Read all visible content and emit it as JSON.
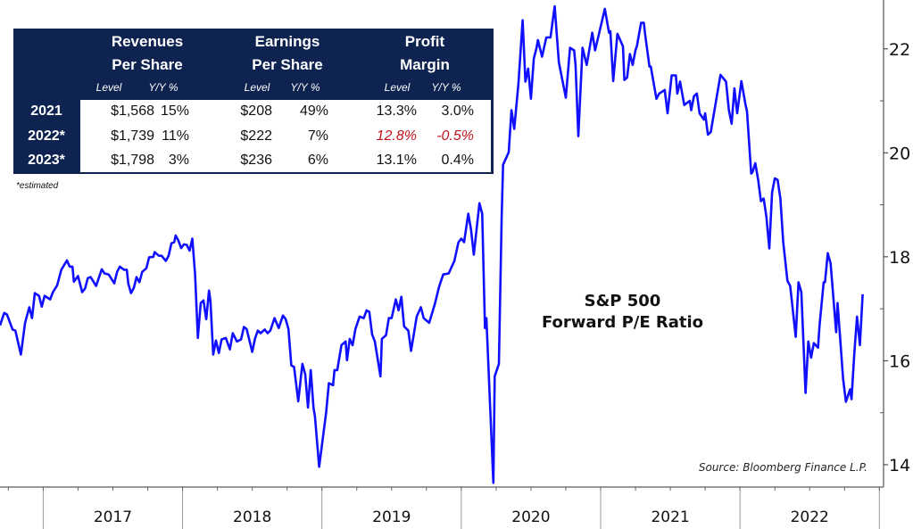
{
  "chart_data": {
    "type": "line",
    "title": "S&P 500",
    "subtitle": "Forward P/E Ratio",
    "source": "Source: Bloomberg Finance L.P.",
    "xlabel": "",
    "ylabel": "",
    "xlim": [
      2016.69,
      2023.03
    ],
    "ylim": [
      13.57,
      22.94
    ],
    "y_axis_side": "right",
    "y_ticks": [
      14,
      16,
      18,
      20,
      22
    ],
    "y_minor_ticks": [
      15,
      17,
      19,
      21
    ],
    "x_tick_labels": [
      "2017",
      "2018",
      "2019",
      "2020",
      "2021",
      "2022"
    ],
    "x_tick_years": [
      2017,
      2018,
      2019,
      2020,
      2021,
      2022
    ],
    "grid": false,
    "line_color": "#1010ff",
    "series": [
      {
        "name": "S&P 500 Forward P/E",
        "x": [
          2016.69,
          2016.72,
          2016.74,
          2016.78,
          2016.8,
          2016.84,
          2016.87,
          2016.9,
          2016.92,
          2016.94,
          2016.97,
          2016.99,
          2017.01,
          2017.05,
          2017.07,
          2017.1,
          2017.13,
          2017.17,
          2017.19,
          2017.21,
          2017.22,
          2017.25,
          2017.28,
          2017.3,
          2017.32,
          2017.34,
          2017.38,
          2017.42,
          2017.44,
          2017.47,
          2017.51,
          2017.53,
          2017.55,
          2017.58,
          2017.6,
          2017.61,
          2017.63,
          2017.65,
          2017.67,
          2017.69,
          2017.71,
          2017.74,
          2017.76,
          2017.79,
          2017.8,
          2017.83,
          2017.85,
          2017.88,
          2017.9,
          2017.92,
          2017.94,
          2017.95,
          2017.97,
          2017.99,
          2018.01,
          2018.03,
          2018.05,
          2018.07,
          2018.09,
          2018.11,
          2018.13,
          2018.15,
          2018.17,
          2018.19,
          2018.2,
          2018.22,
          2018.24,
          2018.26,
          2018.28,
          2018.31,
          2018.34,
          2018.36,
          2018.39,
          2018.42,
          2018.44,
          2018.46,
          2018.5,
          2018.52,
          2018.54,
          2018.56,
          2018.59,
          2018.61,
          2018.63,
          2018.66,
          2018.69,
          2018.72,
          2018.74,
          2018.76,
          2018.78,
          2018.8,
          2018.83,
          2018.86,
          2018.88,
          2018.9,
          2018.92,
          2018.94,
          2018.95,
          2018.98,
          2019.03,
          2019.05,
          2019.08,
          2019.09,
          2019.11,
          2019.14,
          2019.17,
          2019.18,
          2019.2,
          2019.22,
          2019.24,
          2019.27,
          2019.3,
          2019.32,
          2019.34,
          2019.36,
          2019.38,
          2019.42,
          2019.43,
          2019.46,
          2019.48,
          2019.5,
          2019.53,
          2019.55,
          2019.57,
          2019.59,
          2019.62,
          2019.64,
          2019.68,
          2019.71,
          2019.73,
          2019.77,
          2019.81,
          2019.84,
          2019.87,
          2019.91,
          2019.93,
          2019.95,
          2019.98,
          2020.0,
          2020.02,
          2020.05,
          2020.07,
          2020.09,
          2020.13,
          2020.15,
          2020.17,
          2020.18,
          2020.23,
          2020.24,
          2020.27,
          2020.29,
          2020.3,
          2020.34,
          2020.36,
          2020.38,
          2020.41,
          2020.44,
          2020.46,
          2020.48,
          2020.5,
          2020.52,
          2020.54,
          2020.55,
          2020.58,
          2020.61,
          2020.64,
          2020.67,
          2020.7,
          2020.75,
          2020.78,
          2020.81,
          2020.82,
          2020.84,
          2020.87,
          2020.9,
          2020.94,
          2020.96,
          2021.03,
          2021.06,
          2021.07,
          2021.09,
          2021.12,
          2021.16,
          2021.17,
          2021.19,
          2021.21,
          2021.23,
          2021.25,
          2021.26,
          2021.29,
          2021.31,
          2021.32,
          2021.35,
          2021.36,
          2021.4,
          2021.42,
          2021.46,
          2021.48,
          2021.51,
          2021.54,
          2021.55,
          2021.57,
          2021.6,
          2021.64,
          2021.65,
          2021.67,
          2021.69,
          2021.71,
          2021.74,
          2021.75,
          2021.77,
          2021.79,
          2021.86,
          2021.9,
          2021.92,
          2021.94,
          2021.96,
          2021.98,
          2022.01,
          2022.04,
          2022.05,
          2022.08,
          2022.09,
          2022.11,
          2022.13,
          2022.15,
          2022.17,
          2022.19,
          2022.21,
          2022.23,
          2022.25,
          2022.27,
          2022.29,
          2022.31,
          2022.34,
          2022.36,
          2022.4,
          2022.42,
          2022.44,
          2022.47,
          2022.49,
          2022.51,
          2022.53,
          2022.56,
          2022.57,
          2022.6,
          2022.61,
          2022.63,
          2022.65,
          2022.69,
          2022.7,
          2022.74,
          2022.76,
          2022.79,
          2022.8,
          2022.82,
          2022.84,
          2022.86,
          2022.88
        ],
        "y": [
          16.68,
          16.92,
          16.89,
          16.6,
          16.58,
          16.12,
          16.73,
          17.03,
          16.82,
          17.3,
          17.25,
          17.04,
          17.25,
          17.18,
          17.32,
          17.45,
          17.75,
          17.93,
          17.81,
          17.81,
          17.52,
          17.63,
          17.32,
          17.39,
          17.59,
          17.61,
          17.44,
          17.76,
          17.68,
          17.66,
          17.49,
          17.71,
          17.81,
          17.75,
          17.75,
          17.49,
          17.3,
          17.4,
          17.61,
          17.51,
          17.71,
          17.78,
          17.99,
          18.0,
          18.09,
          18.02,
          18.02,
          17.92,
          18.02,
          18.26,
          18.28,
          18.41,
          18.31,
          18.17,
          18.24,
          18.23,
          18.12,
          18.35,
          17.66,
          16.44,
          17.11,
          17.16,
          16.8,
          17.35,
          17.15,
          16.12,
          16.39,
          16.15,
          16.41,
          16.44,
          16.22,
          16.53,
          16.37,
          16.41,
          16.65,
          16.61,
          16.17,
          16.43,
          16.58,
          16.53,
          16.6,
          16.53,
          16.58,
          16.82,
          16.63,
          16.87,
          16.8,
          16.61,
          15.91,
          15.88,
          15.22,
          15.94,
          15.74,
          15.1,
          15.82,
          15.09,
          14.93,
          13.96,
          15.0,
          15.57,
          15.53,
          15.82,
          15.82,
          16.3,
          16.37,
          16.01,
          16.42,
          16.3,
          16.61,
          16.85,
          16.82,
          16.97,
          16.94,
          16.51,
          16.37,
          15.7,
          16.42,
          16.49,
          16.82,
          16.82,
          17.18,
          16.97,
          17.23,
          16.66,
          16.58,
          16.19,
          16.85,
          17.03,
          16.82,
          16.73,
          17.09,
          17.42,
          17.66,
          17.68,
          17.8,
          17.92,
          18.28,
          18.35,
          18.28,
          18.83,
          18.52,
          18.04,
          19.03,
          18.83,
          16.63,
          16.82,
          13.65,
          15.7,
          15.94,
          18.76,
          19.77,
          20.01,
          20.82,
          20.46,
          21.33,
          22.55,
          21.37,
          21.62,
          21.04,
          21.81,
          22.02,
          22.17,
          21.85,
          22.22,
          22.22,
          22.82,
          21.74,
          21.06,
          22.02,
          21.97,
          21.69,
          20.32,
          22.02,
          21.69,
          22.31,
          21.97,
          22.77,
          22.31,
          22.34,
          21.38,
          22.29,
          22.05,
          21.4,
          21.45,
          21.9,
          21.69,
          21.98,
          22.05,
          22.5,
          22.5,
          22.26,
          21.66,
          21.66,
          21.04,
          21.14,
          21.21,
          20.76,
          21.49,
          21.49,
          21.14,
          21.37,
          20.92,
          21.0,
          20.82,
          21.09,
          21.14,
          20.76,
          20.64,
          20.76,
          20.35,
          20.4,
          21.5,
          21.37,
          20.82,
          20.56,
          21.24,
          20.76,
          21.38,
          20.92,
          20.8,
          19.6,
          19.63,
          19.8,
          19.48,
          19.07,
          19.12,
          18.76,
          18.16,
          19.24,
          19.51,
          19.48,
          19.12,
          18.28,
          17.54,
          17.44,
          16.46,
          17.51,
          17.32,
          15.38,
          16.37,
          16.06,
          16.34,
          16.25,
          16.66,
          17.51,
          17.51,
          18.07,
          17.87,
          16.55,
          17.11,
          15.65,
          15.21,
          15.45,
          15.26,
          16.13,
          16.85,
          16.3,
          17.28
        ]
      }
    ]
  },
  "table": {
    "headers": [
      {
        "line1": "Revenues",
        "line2": "Per Share"
      },
      {
        "line1": "Earnings",
        "line2": "Per Share"
      },
      {
        "line1": "Profit",
        "line2": "Margin"
      }
    ],
    "subheaders": [
      "Level",
      "Y/Y %",
      "Level",
      "Y/Y %",
      "Level",
      "Y/Y %"
    ],
    "rows": [
      {
        "year": "2021",
        "cells": [
          "$1,568",
          "15%",
          "$208",
          "49%",
          "13.3%",
          "3.0%"
        ],
        "negative": [
          false,
          false,
          false,
          false,
          false,
          false
        ]
      },
      {
        "year": "2022*",
        "cells": [
          "$1,739",
          "11%",
          "$222",
          "7%",
          "12.8%",
          "-0.5%"
        ],
        "negative": [
          false,
          false,
          false,
          false,
          true,
          true
        ]
      },
      {
        "year": "2023*",
        "cells": [
          "$1,798",
          "3%",
          "$236",
          "6%",
          "13.1%",
          "0.4%"
        ],
        "negative": [
          false,
          false,
          false,
          false,
          false,
          false
        ]
      }
    ],
    "footnote": "*estimated",
    "header_color": "#0e2350",
    "negative_color": "#c0141c"
  }
}
